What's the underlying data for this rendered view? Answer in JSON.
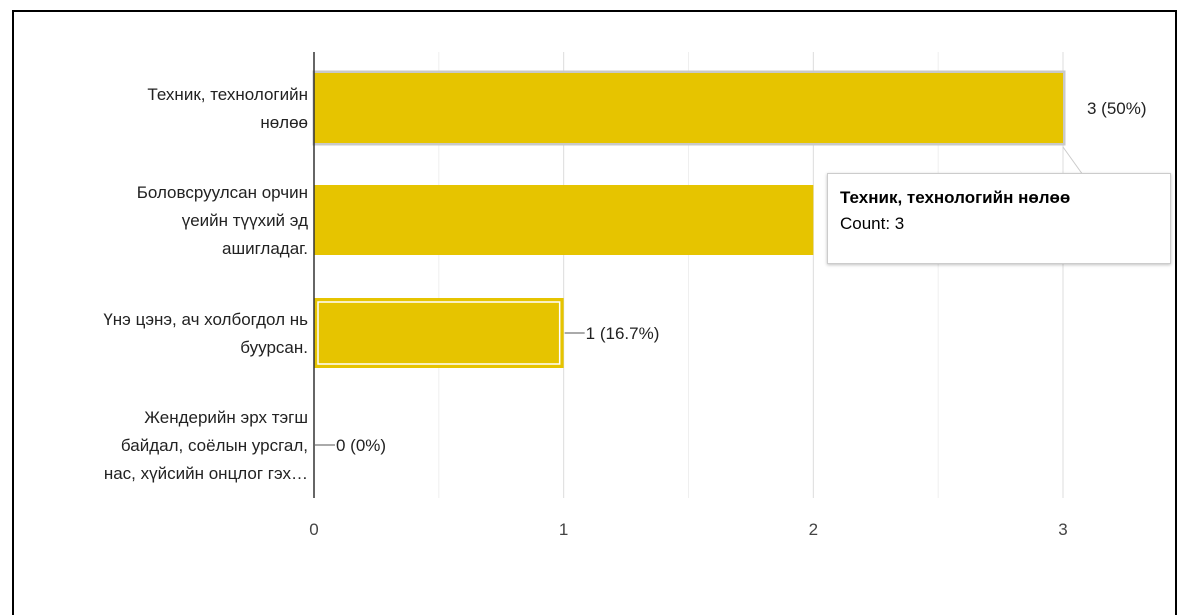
{
  "chart_data": {
    "type": "bar",
    "orientation": "horizontal",
    "categories": [
      [
        "Техник, технологийн",
        "нөлөө"
      ],
      [
        "Боловсруулсан орчин",
        "үеийн түүхий эд",
        "ашигладаг."
      ],
      [
        "Үнэ цэнэ, ач холбогдол нь",
        "буурсан."
      ],
      [
        "Жендерийн эрх тэгш",
        "байдал, соёлын урсгал,",
        "нас, хүйсийн онцлог гэх…"
      ]
    ],
    "values": [
      3,
      2,
      1,
      0
    ],
    "data_labels": [
      "3 (50%)",
      "",
      "1 (16.7%)",
      "0 (0%)"
    ],
    "xlim": [
      0,
      3
    ],
    "x_ticks": [
      "0",
      "1",
      "2",
      "3"
    ],
    "grid": true,
    "bar_color": "#e6c400",
    "highlight_color": "#c9c9c9",
    "highlighted_index": 2,
    "hovered_index": 0
  },
  "tooltip": {
    "title": "Техник, технологийн нөлөө",
    "value": "Count: 3"
  }
}
